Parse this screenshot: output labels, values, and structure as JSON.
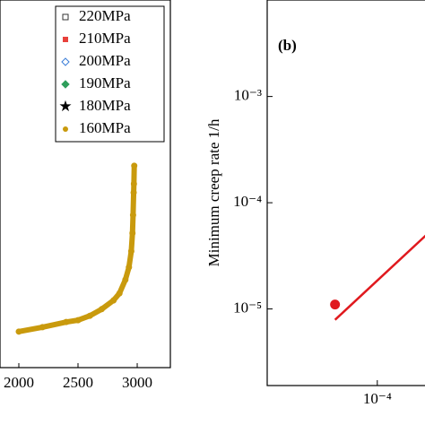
{
  "chart_data": [
    {
      "type": "scatter",
      "x": [
        2000,
        2200,
        2400,
        2500,
        2600,
        2700,
        2800,
        2850,
        2900,
        2930,
        2950,
        2960,
        2965,
        2970,
        2972,
        2975
      ],
      "series": [
        {
          "name": "220MPa",
          "color": "#333333",
          "marker": "open-square",
          "values": [
            null,
            null,
            null,
            null,
            null,
            null,
            null,
            null,
            null,
            null,
            null,
            null,
            null,
            null,
            null,
            null
          ]
        },
        {
          "name": "210MPa",
          "color": "#e8413c",
          "marker": "square",
          "values": [
            null,
            null,
            null,
            null,
            null,
            null,
            null,
            null,
            null,
            null,
            null,
            null,
            null,
            null,
            null,
            null
          ]
        },
        {
          "name": "200MPa",
          "color": "#3b7dd8",
          "marker": "open-diamond",
          "values": [
            null,
            null,
            null,
            null,
            null,
            null,
            null,
            null,
            null,
            null,
            null,
            null,
            null,
            null,
            null,
            null
          ]
        },
        {
          "name": "190MPa",
          "color": "#2e9e5b",
          "marker": "diamond",
          "values": [
            null,
            null,
            null,
            null,
            null,
            null,
            null,
            null,
            null,
            null,
            null,
            null,
            null,
            null,
            null,
            null
          ]
        },
        {
          "name": "180MPa",
          "color": "#b05ad8",
          "marker": "star",
          "values": [
            null,
            null,
            null,
            null,
            null,
            null,
            null,
            null,
            null,
            null,
            null,
            null,
            null,
            null,
            null,
            null
          ]
        },
        {
          "name": "160MPa",
          "color": "#c99a0d",
          "marker": "circle",
          "values": [
            0.098,
            0.11,
            0.124,
            0.129,
            0.141,
            0.159,
            0.183,
            0.202,
            0.239,
            0.273,
            0.317,
            0.366,
            0.415,
            0.476,
            0.5,
            0.549
          ]
        }
      ],
      "xlim": [
        1841,
        3280
      ],
      "ylim": [
        0,
        1
      ],
      "xticks": [
        2000,
        2500,
        3000
      ]
    },
    {
      "type": "loglog",
      "label": "(b)",
      "ylabel": "Minimum creep rate 1/h",
      "xlim": [
        9.8e-06,
        0.000295
      ],
      "ylim": [
        1.9e-06,
        0.0081
      ],
      "xticks": [
        {
          "value": 0.0001,
          "label": "10⁻⁴"
        }
      ],
      "yticks": [
        {
          "value": 0.001,
          "label": "10⁻³"
        },
        {
          "value": 0.0001,
          "label": "10⁻⁴"
        },
        {
          "value": 1e-05,
          "label": "10⁻⁵"
        }
      ],
      "points": {
        "color": "#e0191e",
        "x": [
          4.1e-05
        ],
        "values": [
          1.1e-05
        ]
      },
      "fit": {
        "color": "#e0191e",
        "x": [
          4.1e-05,
          0.000295
        ],
        "values": [
          7.9e-06,
          5.2e-05
        ]
      }
    }
  ]
}
